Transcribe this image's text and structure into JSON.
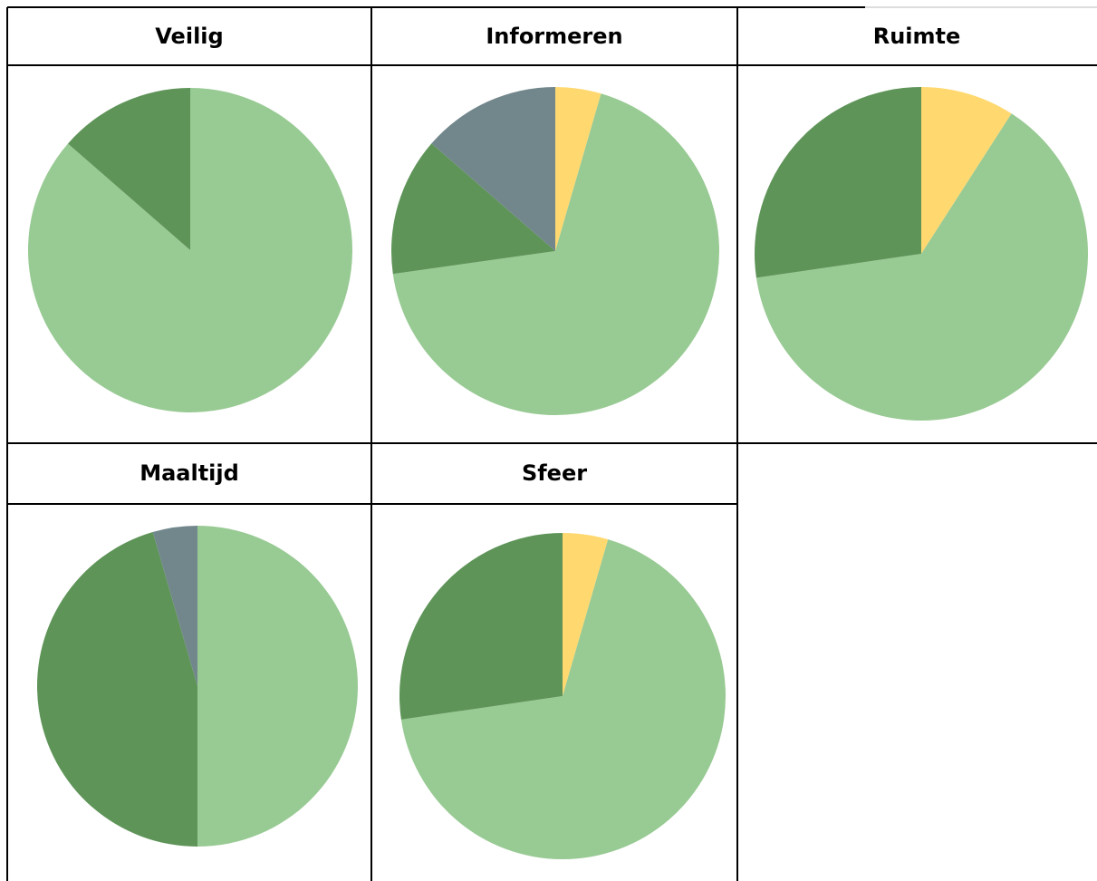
{
  "chart_data": [
    {
      "type": "pie",
      "title": "Veilig",
      "values": [
        86.4,
        13.6
      ],
      "colors": [
        "#98ca93",
        "#5e9458"
      ]
    },
    {
      "type": "pie",
      "title": "Informeren",
      "values": [
        4.5,
        68.2,
        13.6,
        13.6
      ],
      "colors": [
        "#ffd970",
        "#98ca93",
        "#5e9458",
        "#72878c"
      ]
    },
    {
      "type": "pie",
      "title": "Ruimte",
      "values": [
        9.1,
        63.6,
        27.3
      ],
      "colors": [
        "#ffd970",
        "#98ca93",
        "#5e9458"
      ]
    },
    {
      "type": "pie",
      "title": "Maaltijd",
      "values": [
        50,
        45.5,
        4.5
      ],
      "colors": [
        "#98ca93",
        "#5e9458",
        "#72878c"
      ]
    },
    {
      "type": "pie",
      "title": "Sfeer",
      "values": [
        4.5,
        68.2,
        27.3
      ],
      "colors": [
        "#ffd970",
        "#98ca93",
        "#5e9458"
      ]
    }
  ]
}
